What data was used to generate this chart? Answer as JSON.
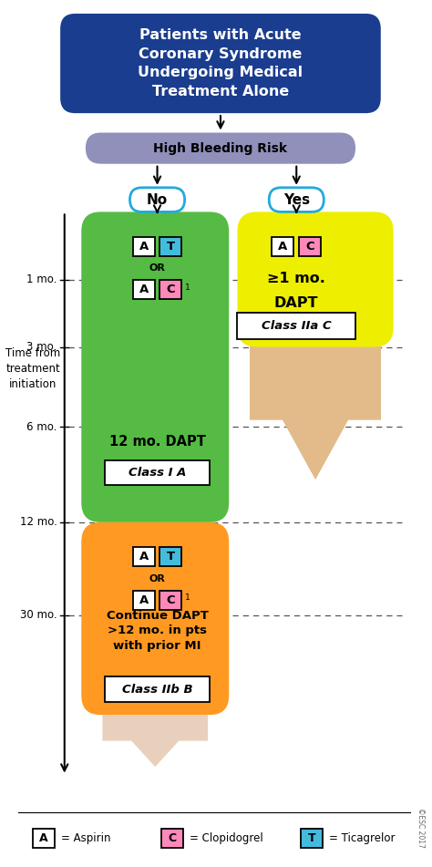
{
  "title": "Patients with Acute\nCoronary Syndrome\nUndergoing Medical\nTreatment Alone",
  "title_bg": "#1b3d8f",
  "title_color": "#ffffff",
  "bleeding_risk_text": "High Bleeding Risk",
  "bleeding_risk_bg": "#9090bb",
  "no_text": "No",
  "yes_text": "Yes",
  "no_yes_border": "#22aadd",
  "no_yes_bg": "#ffffff",
  "green_box_color": "#55bb44",
  "yellow_box_color": "#eeee00",
  "orange_box_color": "#ff9922",
  "green_label": "12 mo. DAPT",
  "green_class": "Class I A",
  "yellow_label1": "≥1 mo.",
  "yellow_label2": "DAPT",
  "yellow_class": "Class IIa C",
  "orange_label": "Continue DAPT\n>12 mo. in pts\nwith prior MI",
  "orange_class": "Class IIb B",
  "time_label": "Time from\ntreatment\ninitiation",
  "time_ticks": [
    "1 mo.",
    "3 mo.",
    "6 mo.",
    "12 mo.",
    "30 mo."
  ],
  "aspirin_color": "#ffffff",
  "clopidogrel_color": "#ff88bb",
  "ticagrelor_color": "#44bbdd",
  "legend_items": [
    {
      "label": "A",
      "bg": "#ffffff",
      "text": "= Aspirin"
    },
    {
      "label": "C",
      "bg": "#ff88bb",
      "text": "= Clopidogrel"
    },
    {
      "label": "T",
      "bg": "#44bbdd",
      "text": "= Ticagrelor"
    }
  ],
  "bg_color": "#ffffff"
}
